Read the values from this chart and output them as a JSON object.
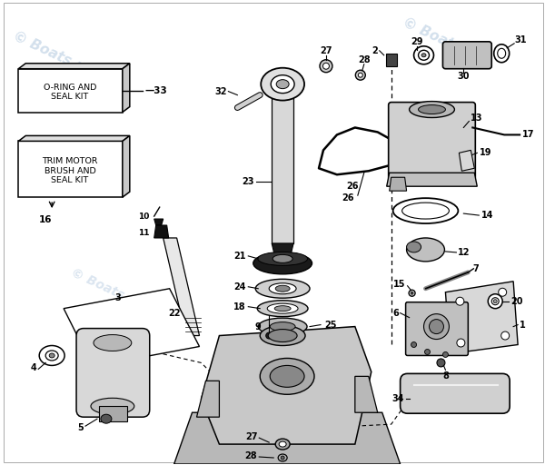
{
  "bg_color": "#ffffff",
  "border_color": "#cccccc",
  "line_color": "#000000",
  "watermark_color": "#c8d8e8",
  "watermark_text": "© Boats.net",
  "box1_text": "O-RING AND\nSEAL KIT",
  "box1_label": "33",
  "box2_text": "TRIM MOTOR\nBRUSH AND\nSEAL KIT",
  "box2_label": "16",
  "figsize": [
    6.0,
    5.12
  ],
  "dpi": 100
}
